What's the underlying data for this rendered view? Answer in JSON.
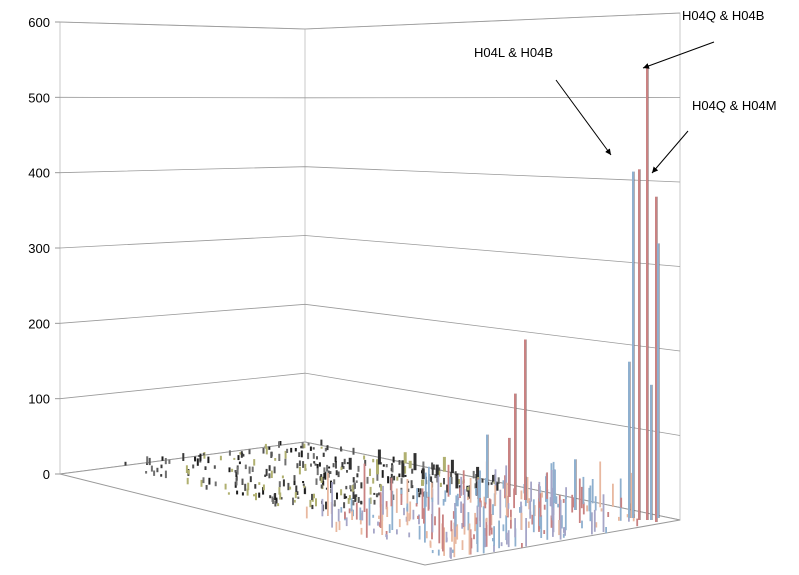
{
  "chart_data": {
    "type": "bar",
    "variant": "3d-column",
    "title": "",
    "xlabel": "",
    "ylabel": "",
    "ylim": [
      0,
      600
    ],
    "yticks": [
      0,
      100,
      200,
      300,
      400,
      500,
      600
    ],
    "grid": true,
    "legend": "none",
    "series_colors": [
      "#c98282",
      "#8fb0cf",
      "#e8b8a0",
      "#a6a6c8",
      "#b0b070",
      "#404040"
    ],
    "tall_columns": [
      {
        "label": "H04Q & H04B",
        "value": 535,
        "color": "#c98282"
      },
      {
        "label": "H04L & H04B",
        "value": 415,
        "color": "#c98282"
      },
      {
        "label": "H04Q & H04M",
        "value": 385,
        "color": "#c98282"
      },
      {
        "label": "",
        "value": 410,
        "color": "#8fb0cf"
      },
      {
        "label": "",
        "value": 325,
        "color": "#8fb0cf"
      },
      {
        "label": "",
        "value": 190,
        "color": "#c98282"
      },
      {
        "label": "",
        "value": 185,
        "color": "#8fb0cf"
      },
      {
        "label": "",
        "value": 160,
        "color": "#8fb0cf"
      },
      {
        "label": "",
        "value": 120,
        "color": "#c98282"
      },
      {
        "label": "",
        "value": 75,
        "color": "#8fb0cf"
      },
      {
        "label": "",
        "value": 70,
        "color": "#c98282"
      },
      {
        "label": "",
        "value": 60,
        "color": "#8fb0cf"
      }
    ],
    "annotations": [
      {
        "text": "H04Q & H04B"
      },
      {
        "text": "H04L & H04B"
      },
      {
        "text": "H04Q & H04M"
      }
    ]
  }
}
